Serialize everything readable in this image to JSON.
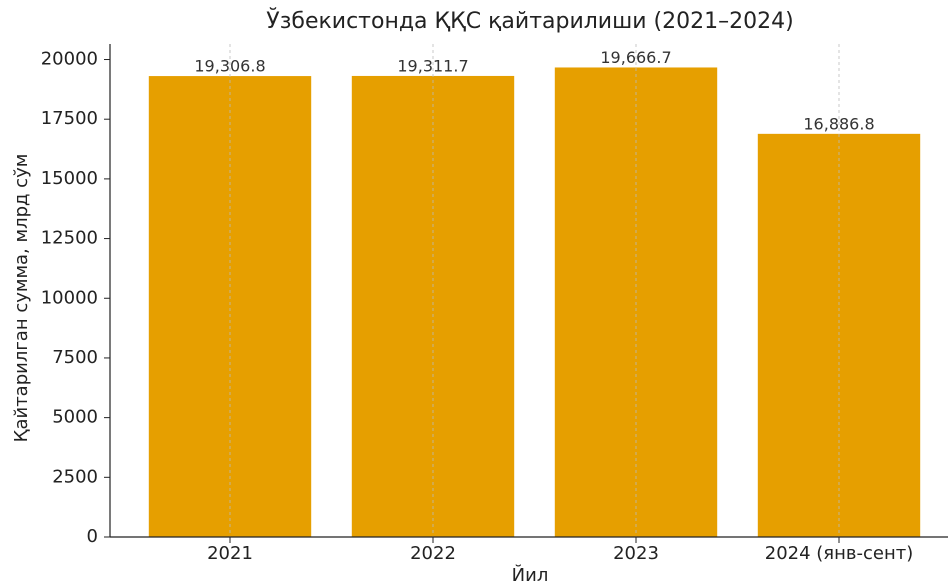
{
  "chart_data": {
    "type": "bar",
    "title": "Ўзбекистонда ҚҚС қайтарилиши (2021–2024)",
    "x_label": "Йил",
    "y_label": "Қайтарилган сумма, млрд сўм",
    "categories": [
      "2021",
      "2022",
      "2023",
      "2024 (янв-сент)"
    ],
    "values": [
      19306.8,
      19311.7,
      19666.7,
      16886.8
    ],
    "value_labels": [
      "19,306.8",
      "19,311.7",
      "19,666.7",
      "16,886.8"
    ],
    "color": "#e69f00",
    "ylim": [
      0,
      20650
    ],
    "yticks": [
      0,
      2500,
      5000,
      7500,
      10000,
      12500,
      15000,
      17500,
      20000
    ],
    "grid": "x"
  }
}
